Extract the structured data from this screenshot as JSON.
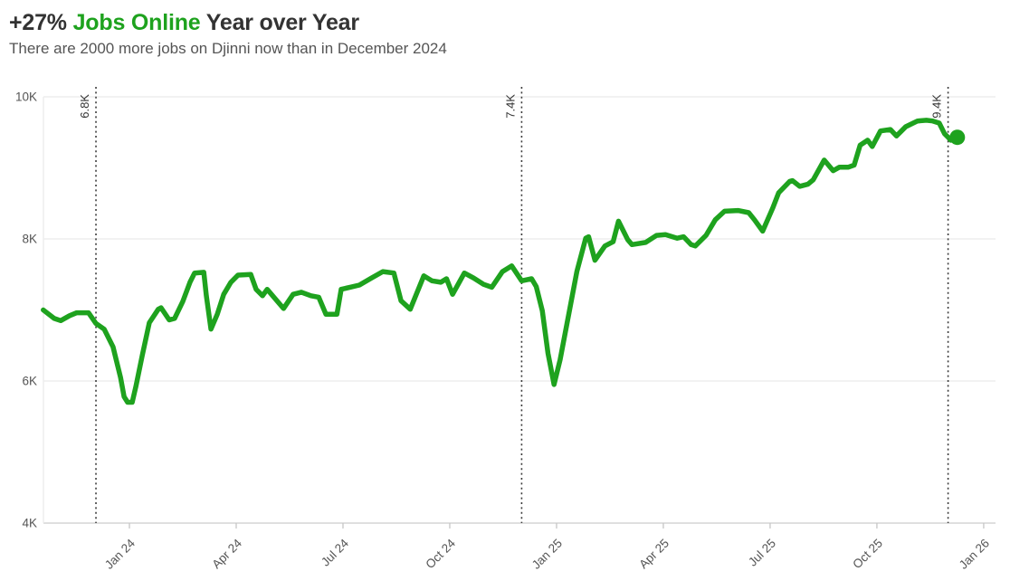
{
  "header": {
    "title_prefix": "+27%",
    "title_highlight": "Jobs Online",
    "title_suffix": "Year over Year",
    "subtitle": "There are 2000 more jobs on Djinni now than in December 2024"
  },
  "colors": {
    "accent_green": "#1ea21e",
    "title_text": "#333333",
    "subtitle_text": "#555555",
    "axis_text": "#555555",
    "annotation_text": "#333333",
    "gridline": "#ebebeb",
    "axis_line": "#cccccc",
    "tick_mark": "#c6c6c6",
    "dotted_line": "#3c3c3c"
  },
  "chart_data": {
    "type": "line",
    "title": "+27% Jobs Online Year over Year",
    "series_name": "Jobs Online on Djinni",
    "x_unit": "months (0 = Jan 2024)",
    "y_unit": "thousands of jobs",
    "xlim": [
      -2.42,
      24.4
    ],
    "ylim": [
      4,
      10
    ],
    "grid": "horizontal",
    "legend": "none",
    "x_tick_labels": [
      "Jan 24",
      "Apr 24",
      "Jul 24",
      "Oct 24",
      "Jan 25",
      "Apr 25",
      "Jul 25",
      "Oct 25",
      "Jan 26"
    ],
    "x_tick_months": [
      0,
      3,
      6,
      9,
      12,
      15,
      18,
      21,
      24
    ],
    "y_tick_labels": [
      "4K",
      "6K",
      "8K",
      "10K"
    ],
    "y_tick_values": [
      4,
      6,
      8,
      10
    ],
    "annotations": [
      {
        "t": -0.94,
        "label": "6.8K",
        "value": 6.8,
        "note": "December 2023 reference line"
      },
      {
        "t": 11.02,
        "label": "7.4K",
        "value": 7.4,
        "note": "December 2024 reference line"
      },
      {
        "t": 23.0,
        "label": "9.4K",
        "value": 9.4,
        "note": "December 2025 reference line"
      }
    ],
    "end_marker": {
      "t": 23.26,
      "value": 9.43
    },
    "points": [
      [
        -2.42,
        7.0
      ],
      [
        -2.11,
        6.88
      ],
      [
        -1.93,
        6.85
      ],
      [
        -1.68,
        6.92
      ],
      [
        -1.48,
        6.96
      ],
      [
        -1.15,
        6.96
      ],
      [
        -0.94,
        6.81
      ],
      [
        -0.71,
        6.73
      ],
      [
        -0.46,
        6.48
      ],
      [
        -0.25,
        6.05
      ],
      [
        -0.15,
        5.78
      ],
      [
        -0.05,
        5.7
      ],
      [
        0.08,
        5.7
      ],
      [
        0.18,
        5.92
      ],
      [
        0.36,
        6.36
      ],
      [
        0.56,
        6.82
      ],
      [
        0.81,
        7.01
      ],
      [
        0.89,
        7.03
      ],
      [
        1.12,
        6.86
      ],
      [
        1.27,
        6.88
      ],
      [
        1.5,
        7.12
      ],
      [
        1.7,
        7.39
      ],
      [
        1.83,
        7.52
      ],
      [
        2.09,
        7.53
      ],
      [
        2.16,
        7.2
      ],
      [
        2.29,
        6.73
      ],
      [
        2.47,
        6.94
      ],
      [
        2.65,
        7.22
      ],
      [
        2.85,
        7.39
      ],
      [
        3.05,
        7.49
      ],
      [
        3.41,
        7.5
      ],
      [
        3.56,
        7.29
      ],
      [
        3.74,
        7.2
      ],
      [
        3.87,
        7.29
      ],
      [
        4.33,
        7.02
      ],
      [
        4.6,
        7.22
      ],
      [
        4.83,
        7.25
      ],
      [
        5.1,
        7.2
      ],
      [
        5.32,
        7.18
      ],
      [
        5.52,
        6.94
      ],
      [
        5.83,
        6.94
      ],
      [
        5.95,
        7.29
      ],
      [
        6.2,
        7.32
      ],
      [
        6.46,
        7.35
      ],
      [
        6.8,
        7.45
      ],
      [
        7.12,
        7.54
      ],
      [
        7.43,
        7.52
      ],
      [
        7.63,
        7.13
      ],
      [
        7.89,
        7.01
      ],
      [
        8.27,
        7.48
      ],
      [
        8.5,
        7.41
      ],
      [
        8.75,
        7.39
      ],
      [
        8.91,
        7.44
      ],
      [
        9.08,
        7.22
      ],
      [
        9.41,
        7.52
      ],
      [
        9.67,
        7.45
      ],
      [
        9.95,
        7.36
      ],
      [
        10.18,
        7.32
      ],
      [
        10.48,
        7.54
      ],
      [
        10.74,
        7.62
      ],
      [
        11.02,
        7.41
      ],
      [
        11.3,
        7.44
      ],
      [
        11.43,
        7.33
      ],
      [
        11.6,
        6.99
      ],
      [
        11.76,
        6.39
      ],
      [
        11.93,
        5.95
      ],
      [
        12.1,
        6.3
      ],
      [
        12.57,
        7.54
      ],
      [
        12.82,
        8.01
      ],
      [
        12.9,
        8.03
      ],
      [
        13.08,
        7.7
      ],
      [
        13.36,
        7.9
      ],
      [
        13.59,
        7.96
      ],
      [
        13.74,
        8.25
      ],
      [
        14.0,
        7.99
      ],
      [
        14.12,
        7.92
      ],
      [
        14.5,
        7.95
      ],
      [
        14.81,
        8.05
      ],
      [
        15.06,
        8.06
      ],
      [
        15.39,
        8.01
      ],
      [
        15.57,
        8.03
      ],
      [
        15.78,
        7.92
      ],
      [
        15.9,
        7.9
      ],
      [
        16.2,
        8.05
      ],
      [
        16.46,
        8.27
      ],
      [
        16.72,
        8.39
      ],
      [
        17.1,
        8.4
      ],
      [
        17.4,
        8.37
      ],
      [
        17.56,
        8.27
      ],
      [
        17.79,
        8.11
      ],
      [
        18.07,
        8.43
      ],
      [
        18.24,
        8.65
      ],
      [
        18.55,
        8.81
      ],
      [
        18.63,
        8.82
      ],
      [
        18.83,
        8.74
      ],
      [
        19.06,
        8.77
      ],
      [
        19.21,
        8.83
      ],
      [
        19.52,
        9.11
      ],
      [
        19.77,
        8.96
      ],
      [
        19.95,
        9.01
      ],
      [
        20.2,
        9.01
      ],
      [
        20.36,
        9.04
      ],
      [
        20.53,
        9.32
      ],
      [
        20.74,
        9.39
      ],
      [
        20.87,
        9.3
      ],
      [
        21.1,
        9.52
      ],
      [
        21.38,
        9.54
      ],
      [
        21.55,
        9.45
      ],
      [
        21.81,
        9.58
      ],
      [
        22.14,
        9.66
      ],
      [
        22.39,
        9.67
      ],
      [
        22.57,
        9.66
      ],
      [
        22.75,
        9.63
      ],
      [
        22.9,
        9.48
      ],
      [
        23.0,
        9.43
      ],
      [
        23.08,
        9.39
      ],
      [
        23.26,
        9.43
      ]
    ]
  }
}
